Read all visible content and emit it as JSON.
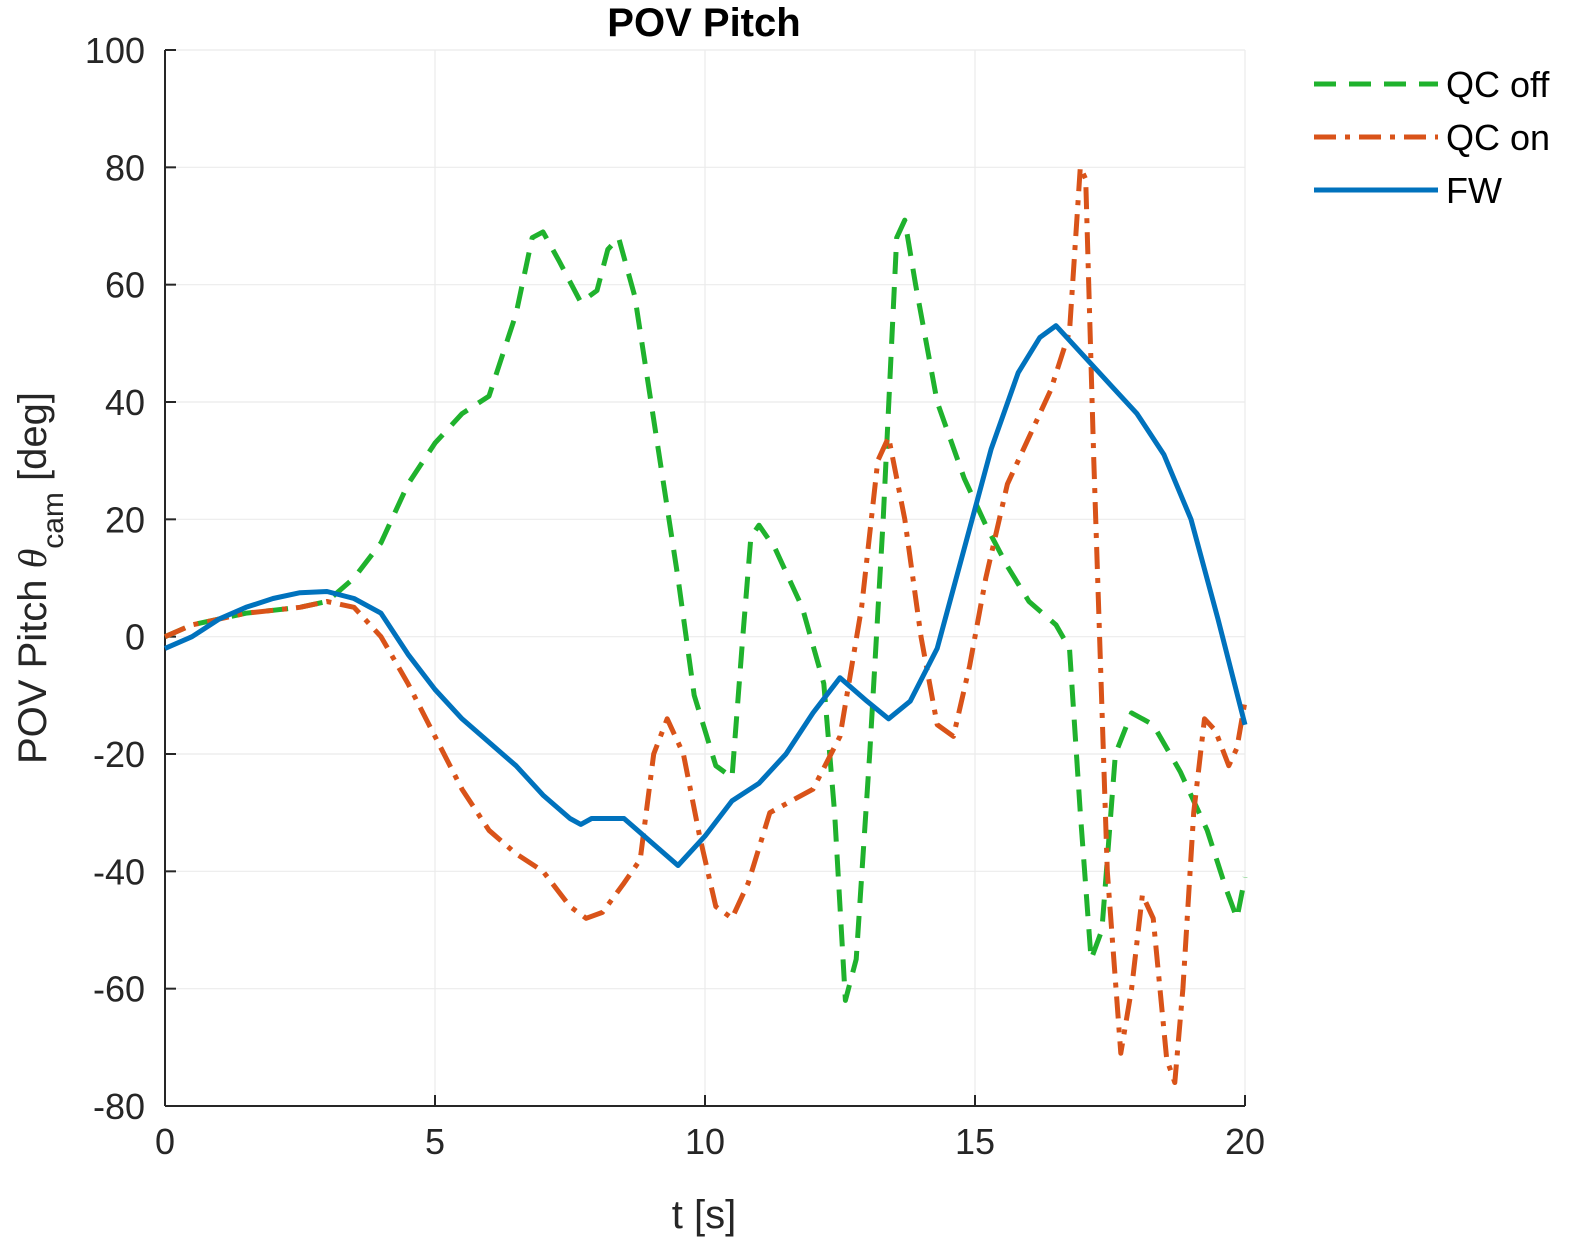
{
  "chart_data": {
    "type": "line",
    "title": "POV Pitch",
    "xlabel": "t [s]",
    "ylabel": {
      "prefix": "POV Pitch ",
      "symbol": "θ",
      "subscript": "cam",
      "suffix": " [deg]"
    },
    "xlim": [
      0,
      20
    ],
    "ylim": [
      -80,
      100
    ],
    "x_ticks": [
      0,
      5,
      10,
      15,
      20
    ],
    "y_ticks": [
      -80,
      -60,
      -40,
      -20,
      0,
      20,
      40,
      60,
      80,
      100
    ],
    "grid": true,
    "legend_position": "outside-top-right",
    "series": [
      {
        "name": "QC off",
        "color": "#1fb22d",
        "style": "dashed",
        "points": [
          [
            0,
            0
          ],
          [
            0.5,
            2
          ],
          [
            1,
            3
          ],
          [
            1.5,
            4
          ],
          [
            2,
            4.5
          ],
          [
            2.5,
            5
          ],
          [
            3,
            6
          ],
          [
            3.5,
            10
          ],
          [
            4,
            16
          ],
          [
            4.5,
            26
          ],
          [
            5,
            33
          ],
          [
            5.5,
            38
          ],
          [
            6,
            41
          ],
          [
            6.5,
            55
          ],
          [
            6.8,
            68
          ],
          [
            7,
            69
          ],
          [
            7.3,
            64
          ],
          [
            7.7,
            57
          ],
          [
            8,
            59
          ],
          [
            8.2,
            66
          ],
          [
            8.4,
            68
          ],
          [
            8.7,
            58
          ],
          [
            9,
            40
          ],
          [
            9.5,
            10
          ],
          [
            9.8,
            -10
          ],
          [
            10.2,
            -22
          ],
          [
            10.5,
            -24
          ],
          [
            10.7,
            0
          ],
          [
            10.85,
            17
          ],
          [
            11,
            19
          ],
          [
            11.3,
            15
          ],
          [
            11.8,
            5
          ],
          [
            12.2,
            -8
          ],
          [
            12.4,
            -30
          ],
          [
            12.6,
            -62
          ],
          [
            12.8,
            -55
          ],
          [
            13.05,
            -20
          ],
          [
            13.3,
            20
          ],
          [
            13.55,
            68
          ],
          [
            13.7,
            71
          ],
          [
            13.9,
            60
          ],
          [
            14.3,
            40
          ],
          [
            14.8,
            27
          ],
          [
            15.2,
            19
          ],
          [
            15.6,
            12
          ],
          [
            16,
            6
          ],
          [
            16.5,
            2
          ],
          [
            16.75,
            -2
          ],
          [
            16.95,
            -30
          ],
          [
            17.15,
            -55
          ],
          [
            17.35,
            -50
          ],
          [
            17.6,
            -20
          ],
          [
            17.9,
            -13
          ],
          [
            18.3,
            -15
          ],
          [
            18.8,
            -23
          ],
          [
            19.3,
            -33
          ],
          [
            19.65,
            -43
          ],
          [
            19.85,
            -48
          ],
          [
            20,
            -41
          ]
        ]
      },
      {
        "name": "QC on",
        "color": "#d95319",
        "style": "dashdot",
        "points": [
          [
            0,
            0
          ],
          [
            0.5,
            2
          ],
          [
            1,
            3
          ],
          [
            1.5,
            4
          ],
          [
            2,
            4.5
          ],
          [
            2.5,
            5
          ],
          [
            3,
            6
          ],
          [
            3.5,
            5
          ],
          [
            4,
            0
          ],
          [
            4.5,
            -8
          ],
          [
            5,
            -17
          ],
          [
            5.5,
            -26
          ],
          [
            6,
            -33
          ],
          [
            6.5,
            -37
          ],
          [
            7,
            -40
          ],
          [
            7.5,
            -46
          ],
          [
            7.8,
            -48
          ],
          [
            8.1,
            -47
          ],
          [
            8.5,
            -42
          ],
          [
            8.8,
            -38
          ],
          [
            9.05,
            -20
          ],
          [
            9.3,
            -14
          ],
          [
            9.6,
            -20
          ],
          [
            9.9,
            -34
          ],
          [
            10.2,
            -46
          ],
          [
            10.5,
            -48
          ],
          [
            10.8,
            -42
          ],
          [
            11.2,
            -30
          ],
          [
            11.6,
            -28
          ],
          [
            12,
            -26
          ],
          [
            12.5,
            -17
          ],
          [
            12.9,
            5
          ],
          [
            13.2,
            30
          ],
          [
            13.4,
            34
          ],
          [
            13.7,
            20
          ],
          [
            14,
            0
          ],
          [
            14.3,
            -15
          ],
          [
            14.6,
            -17
          ],
          [
            14.9,
            -5
          ],
          [
            15.2,
            10
          ],
          [
            15.6,
            26
          ],
          [
            16,
            34
          ],
          [
            16.4,
            42
          ],
          [
            16.75,
            52
          ],
          [
            16.95,
            80
          ],
          [
            17.05,
            78
          ],
          [
            17.2,
            30
          ],
          [
            17.45,
            -40
          ],
          [
            17.7,
            -71
          ],
          [
            17.9,
            -60
          ],
          [
            18.1,
            -44
          ],
          [
            18.3,
            -48
          ],
          [
            18.55,
            -72
          ],
          [
            18.7,
            -76
          ],
          [
            18.85,
            -60
          ],
          [
            19.05,
            -30
          ],
          [
            19.25,
            -14
          ],
          [
            19.45,
            -16
          ],
          [
            19.7,
            -22
          ],
          [
            19.85,
            -19
          ],
          [
            20,
            -11
          ]
        ]
      },
      {
        "name": "FW",
        "color": "#0072bd",
        "style": "solid",
        "points": [
          [
            0,
            -2
          ],
          [
            0.5,
            0
          ],
          [
            1,
            3
          ],
          [
            1.5,
            5
          ],
          [
            2,
            6.5
          ],
          [
            2.5,
            7.5
          ],
          [
            3,
            7.7
          ],
          [
            3.5,
            6.5
          ],
          [
            4,
            4
          ],
          [
            4.5,
            -3
          ],
          [
            5,
            -9
          ],
          [
            5.5,
            -14
          ],
          [
            6,
            -18
          ],
          [
            6.5,
            -22
          ],
          [
            7,
            -27
          ],
          [
            7.5,
            -31
          ],
          [
            7.7,
            -32
          ],
          [
            7.9,
            -31
          ],
          [
            8.5,
            -31
          ],
          [
            9,
            -35
          ],
          [
            9.5,
            -39
          ],
          [
            10,
            -34
          ],
          [
            10.5,
            -28
          ],
          [
            11,
            -25
          ],
          [
            11.5,
            -20
          ],
          [
            12,
            -13
          ],
          [
            12.5,
            -7
          ],
          [
            13,
            -11
          ],
          [
            13.4,
            -14
          ],
          [
            13.8,
            -11
          ],
          [
            14.3,
            -2
          ],
          [
            14.8,
            15
          ],
          [
            15.3,
            32
          ],
          [
            15.8,
            45
          ],
          [
            16.2,
            51
          ],
          [
            16.5,
            53
          ],
          [
            17,
            48
          ],
          [
            17.5,
            43
          ],
          [
            18,
            38
          ],
          [
            18.5,
            31
          ],
          [
            19,
            20
          ],
          [
            19.5,
            3
          ],
          [
            20,
            -15
          ]
        ]
      }
    ]
  }
}
